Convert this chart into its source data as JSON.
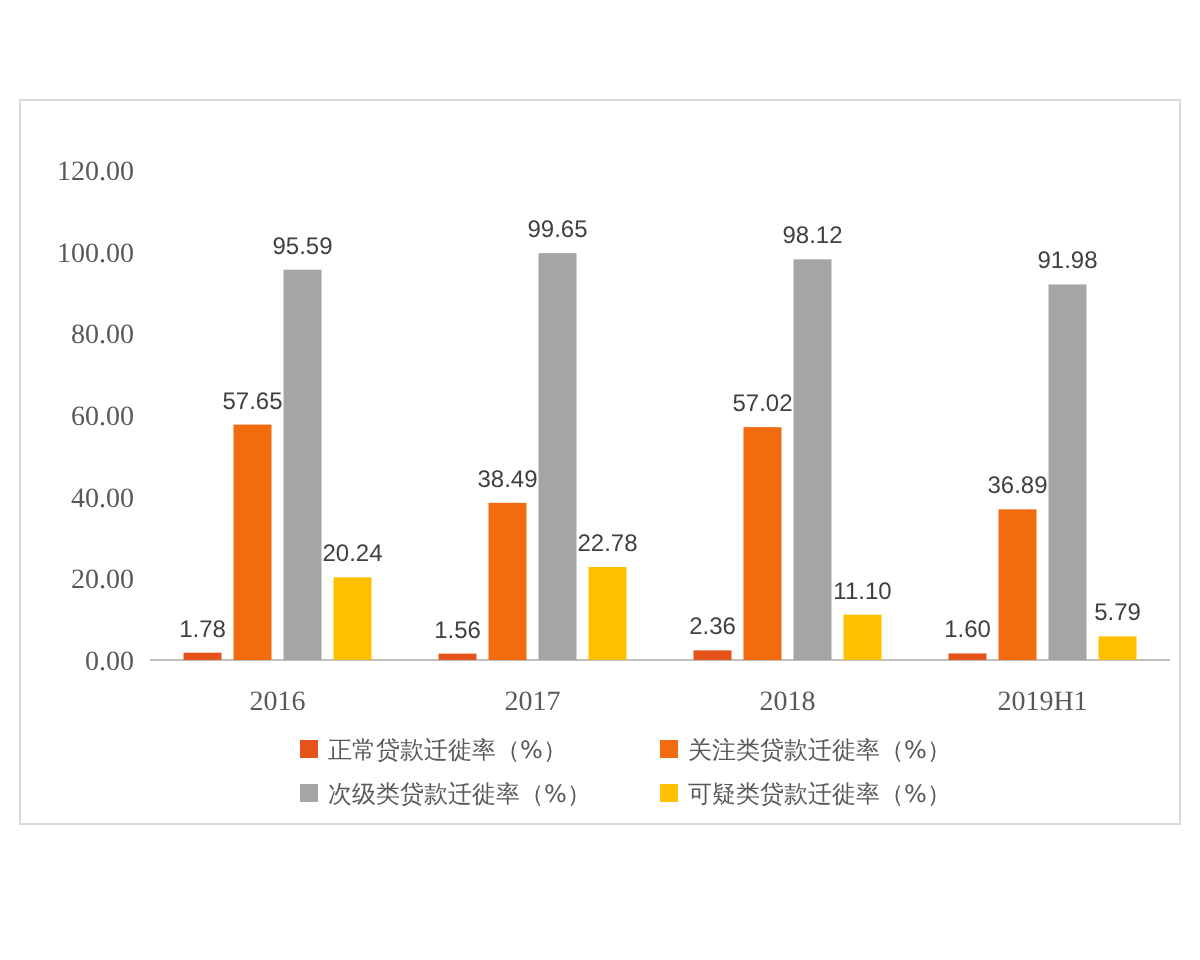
{
  "chart_data": {
    "type": "bar",
    "categories": [
      "2016",
      "2017",
      "2018",
      "2019H1"
    ],
    "series": [
      {
        "name": "正常贷款迁徙率（%）",
        "color": "#e5521a",
        "values": [
          1.78,
          1.56,
          2.36,
          1.6
        ],
        "value_labels": [
          "1.78",
          "1.56",
          "2.36",
          "1.60"
        ]
      },
      {
        "name": "关注类贷款迁徙率（%）",
        "color": "#f26b0f",
        "values": [
          57.65,
          38.49,
          57.02,
          36.89
        ],
        "value_labels": [
          "57.65",
          "38.49",
          "57.02",
          "36.89"
        ]
      },
      {
        "name": "次级类贷款迁徙率（%）",
        "color": "#a5a5a5",
        "values": [
          95.59,
          99.65,
          98.12,
          91.98
        ],
        "value_labels": [
          "95.59",
          "99.65",
          "98.12",
          "91.98"
        ]
      },
      {
        "name": "可疑类贷款迁徙率（%）",
        "color": "#ffc000",
        "values": [
          20.24,
          22.78,
          11.1,
          5.79
        ],
        "value_labels": [
          "20.24",
          "22.78",
          "11.10",
          "5.79"
        ]
      }
    ],
    "ylim": [
      0,
      120
    ],
    "yticks": [
      {
        "value": 0,
        "label": "0.00"
      },
      {
        "value": 20,
        "label": "20.00"
      },
      {
        "value": 40,
        "label": "40.00"
      },
      {
        "value": 60,
        "label": "60.00"
      },
      {
        "value": 80,
        "label": "80.00"
      },
      {
        "value": 100,
        "label": "100.00"
      },
      {
        "value": 120,
        "label": "120.00"
      }
    ],
    "legend": "bottom"
  }
}
